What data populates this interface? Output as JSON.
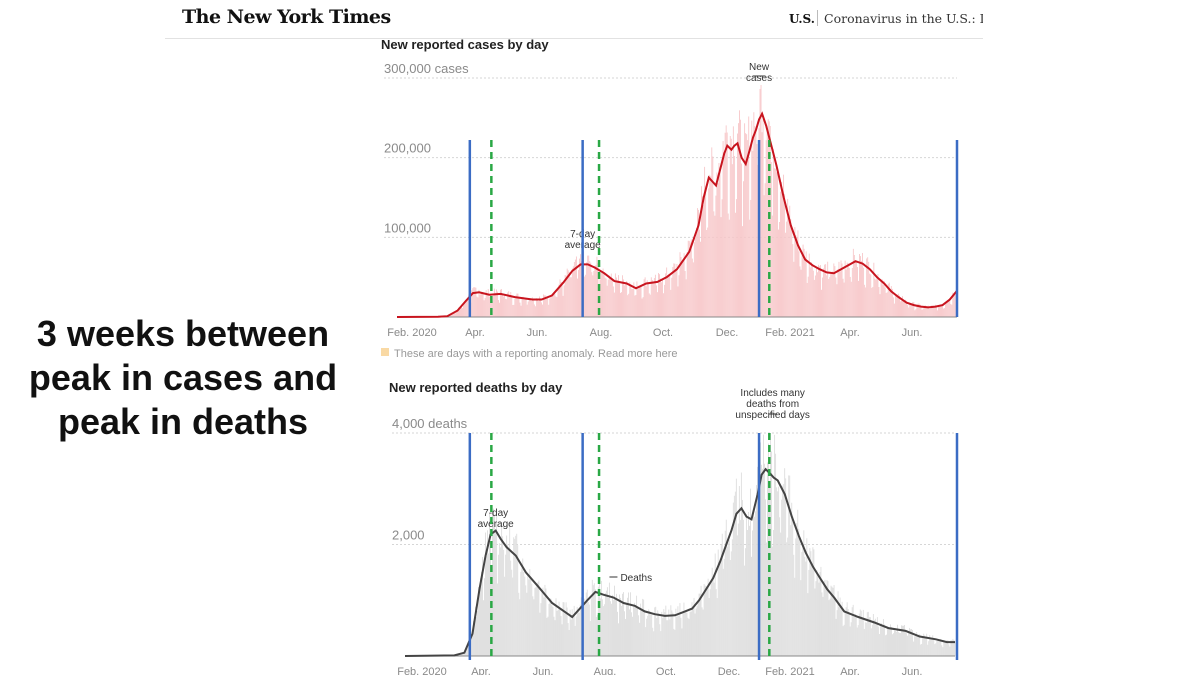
{
  "caption": {
    "line1": "3 weeks between",
    "line2": "peak in cases and",
    "line3": "peak in deaths"
  },
  "header": {
    "logo": "The New York Times",
    "section": "U.S.",
    "headline": "Coronavirus in the U.S.: Late"
  },
  "colors": {
    "cases_line": "#c8141e",
    "cases_bars": "#f7c6c8",
    "deaths_line": "#444444",
    "deaths_bars": "#dcdcdc",
    "anomaly": "#f9d9a4",
    "peak_case_marker": "#3b6cc4",
    "peak_death_marker": "#2aa845"
  },
  "chart_data": [
    {
      "type": "area",
      "title": "New reported cases by day",
      "y_unit_label": "300,000 cases",
      "yticks": [
        {
          "value": 100000,
          "label": "100,000"
        },
        {
          "value": 200000,
          "label": "200,000"
        },
        {
          "value": 300000,
          "label": "300,000 cases"
        }
      ],
      "ylim": [
        0,
        300000
      ],
      "xticks": [
        "Feb. 2020",
        "Apr.",
        "Jun.",
        "Aug.",
        "Oct.",
        "Dec.",
        "Feb. 2021",
        "Apr.",
        "Jun."
      ],
      "x_range": [
        "2020-01-21",
        "2021-07-20"
      ],
      "grid": true,
      "series": [
        {
          "name": "7-day average",
          "dates": [
            "2020-01-21",
            "2020-03-01",
            "2020-03-10",
            "2020-03-20",
            "2020-03-28",
            "2020-04-04",
            "2020-04-10",
            "2020-04-20",
            "2020-05-01",
            "2020-05-15",
            "2020-06-01",
            "2020-06-10",
            "2020-06-20",
            "2020-07-01",
            "2020-07-10",
            "2020-07-18",
            "2020-07-25",
            "2020-08-01",
            "2020-08-10",
            "2020-08-20",
            "2020-09-01",
            "2020-09-10",
            "2020-09-20",
            "2020-10-01",
            "2020-10-10",
            "2020-10-20",
            "2020-11-01",
            "2020-11-10",
            "2020-11-15",
            "2020-11-20",
            "2020-11-27",
            "2020-12-01",
            "2020-12-05",
            "2020-12-08",
            "2020-12-12",
            "2020-12-15",
            "2020-12-18",
            "2020-12-22",
            "2020-12-26",
            "2020-12-30",
            "2021-01-02",
            "2021-01-05",
            "2021-01-08",
            "2021-01-11",
            "2021-01-15",
            "2021-01-20",
            "2021-01-25",
            "2021-02-01",
            "2021-02-08",
            "2021-02-15",
            "2021-02-22",
            "2021-03-01",
            "2021-03-08",
            "2021-03-15",
            "2021-03-22",
            "2021-03-29",
            "2021-04-05",
            "2021-04-12",
            "2021-04-19",
            "2021-04-26",
            "2021-05-03",
            "2021-05-10",
            "2021-05-17",
            "2021-05-24",
            "2021-06-01",
            "2021-06-08",
            "2021-06-15",
            "2021-06-22",
            "2021-06-29",
            "2021-07-06",
            "2021-07-13",
            "2021-07-20"
          ],
          "values": [
            0,
            200,
            1000,
            8000,
            20000,
            30000,
            31000,
            28000,
            29000,
            25000,
            22000,
            22000,
            27000,
            43000,
            58000,
            66000,
            66000,
            62000,
            55000,
            45000,
            42000,
            36000,
            42000,
            44000,
            50000,
            60000,
            82000,
            115000,
            150000,
            175000,
            165000,
            185000,
            205000,
            215000,
            210000,
            215000,
            218000,
            200000,
            192000,
            210000,
            225000,
            235000,
            248000,
            255000,
            240000,
            215000,
            190000,
            150000,
            115000,
            90000,
            72000,
            65000,
            60000,
            56000,
            55000,
            60000,
            65000,
            70000,
            67000,
            60000,
            50000,
            42000,
            32000,
            25000,
            18000,
            15000,
            13000,
            12000,
            13000,
            15000,
            22000,
            33000
          ]
        }
      ],
      "annotations": [
        {
          "label": "7-day",
          "label2": "average",
          "date": "2020-07-20"
        },
        {
          "label": "New",
          "label2": "cases",
          "date": "2021-01-08"
        }
      ],
      "note": "These are days with a reporting anomaly. Read more here"
    },
    {
      "type": "area",
      "title": "New reported deaths by day",
      "y_unit_label": "4,000 deaths",
      "yticks": [
        {
          "value": 2000,
          "label": "2,000"
        },
        {
          "value": 4000,
          "label": "4,000 deaths"
        }
      ],
      "ylim": [
        0,
        4000
      ],
      "xticks": [
        "Feb. 2020",
        "Apr.",
        "Jun.",
        "Aug.",
        "Oct.",
        "Dec.",
        "Feb. 2021",
        "Apr.",
        "Jun."
      ],
      "x_range": [
        "2020-01-21",
        "2021-07-20"
      ],
      "grid": true,
      "series": [
        {
          "name": "Deaths",
          "dates": [
            "2020-01-21",
            "2020-03-10",
            "2020-03-20",
            "2020-03-28",
            "2020-04-04",
            "2020-04-10",
            "2020-04-15",
            "2020-04-20",
            "2020-04-25",
            "2020-05-01",
            "2020-05-10",
            "2020-05-20",
            "2020-06-01",
            "2020-06-15",
            "2020-07-01",
            "2020-07-05",
            "2020-07-10",
            "2020-07-20",
            "2020-07-28",
            "2020-08-05",
            "2020-08-15",
            "2020-08-25",
            "2020-09-05",
            "2020-09-15",
            "2020-09-25",
            "2020-10-05",
            "2020-10-15",
            "2020-10-25",
            "2020-11-01",
            "2020-11-08",
            "2020-11-15",
            "2020-11-22",
            "2020-11-29",
            "2020-12-05",
            "2020-12-10",
            "2020-12-15",
            "2020-12-20",
            "2020-12-25",
            "2020-12-30",
            "2021-01-05",
            "2021-01-09",
            "2021-01-13",
            "2021-01-17",
            "2021-01-21",
            "2021-01-25",
            "2021-02-01",
            "2021-02-08",
            "2021-02-15",
            "2021-02-22",
            "2021-03-01",
            "2021-03-08",
            "2021-03-15",
            "2021-03-22",
            "2021-04-01",
            "2021-04-15",
            "2021-05-01",
            "2021-05-15",
            "2021-06-01",
            "2021-06-15",
            "2021-07-01",
            "2021-07-12",
            "2021-07-20"
          ],
          "values": [
            0,
            10,
            60,
            400,
            1200,
            1800,
            2180,
            2250,
            2100,
            1950,
            1800,
            1500,
            1250,
            950,
            750,
            700,
            800,
            1000,
            1150,
            1100,
            1050,
            950,
            900,
            800,
            750,
            720,
            730,
            800,
            850,
            1000,
            1200,
            1400,
            1700,
            2000,
            2250,
            2550,
            2650,
            2500,
            2450,
            2900,
            3250,
            3350,
            3280,
            3200,
            3150,
            2900,
            2500,
            2150,
            1850,
            1600,
            1400,
            1200,
            1050,
            800,
            700,
            600,
            500,
            450,
            350,
            300,
            250,
            250
          ]
        }
      ],
      "annotations": [
        {
          "label": "7-day",
          "label2": "average",
          "date": "2020-04-20"
        },
        {
          "label": "Deaths",
          "date": "2020-08-05"
        },
        {
          "label": "Includes many",
          "label2": "deaths from",
          "label3": "unspecified days",
          "date": "2021-01-20"
        }
      ]
    }
  ],
  "overlay_markers": {
    "case_peaks": [
      "2020-04-01",
      "2020-07-20",
      "2021-01-08",
      "2021-07-20"
    ],
    "death_peaks": [
      "2020-04-22",
      "2020-08-05",
      "2021-01-18"
    ]
  }
}
